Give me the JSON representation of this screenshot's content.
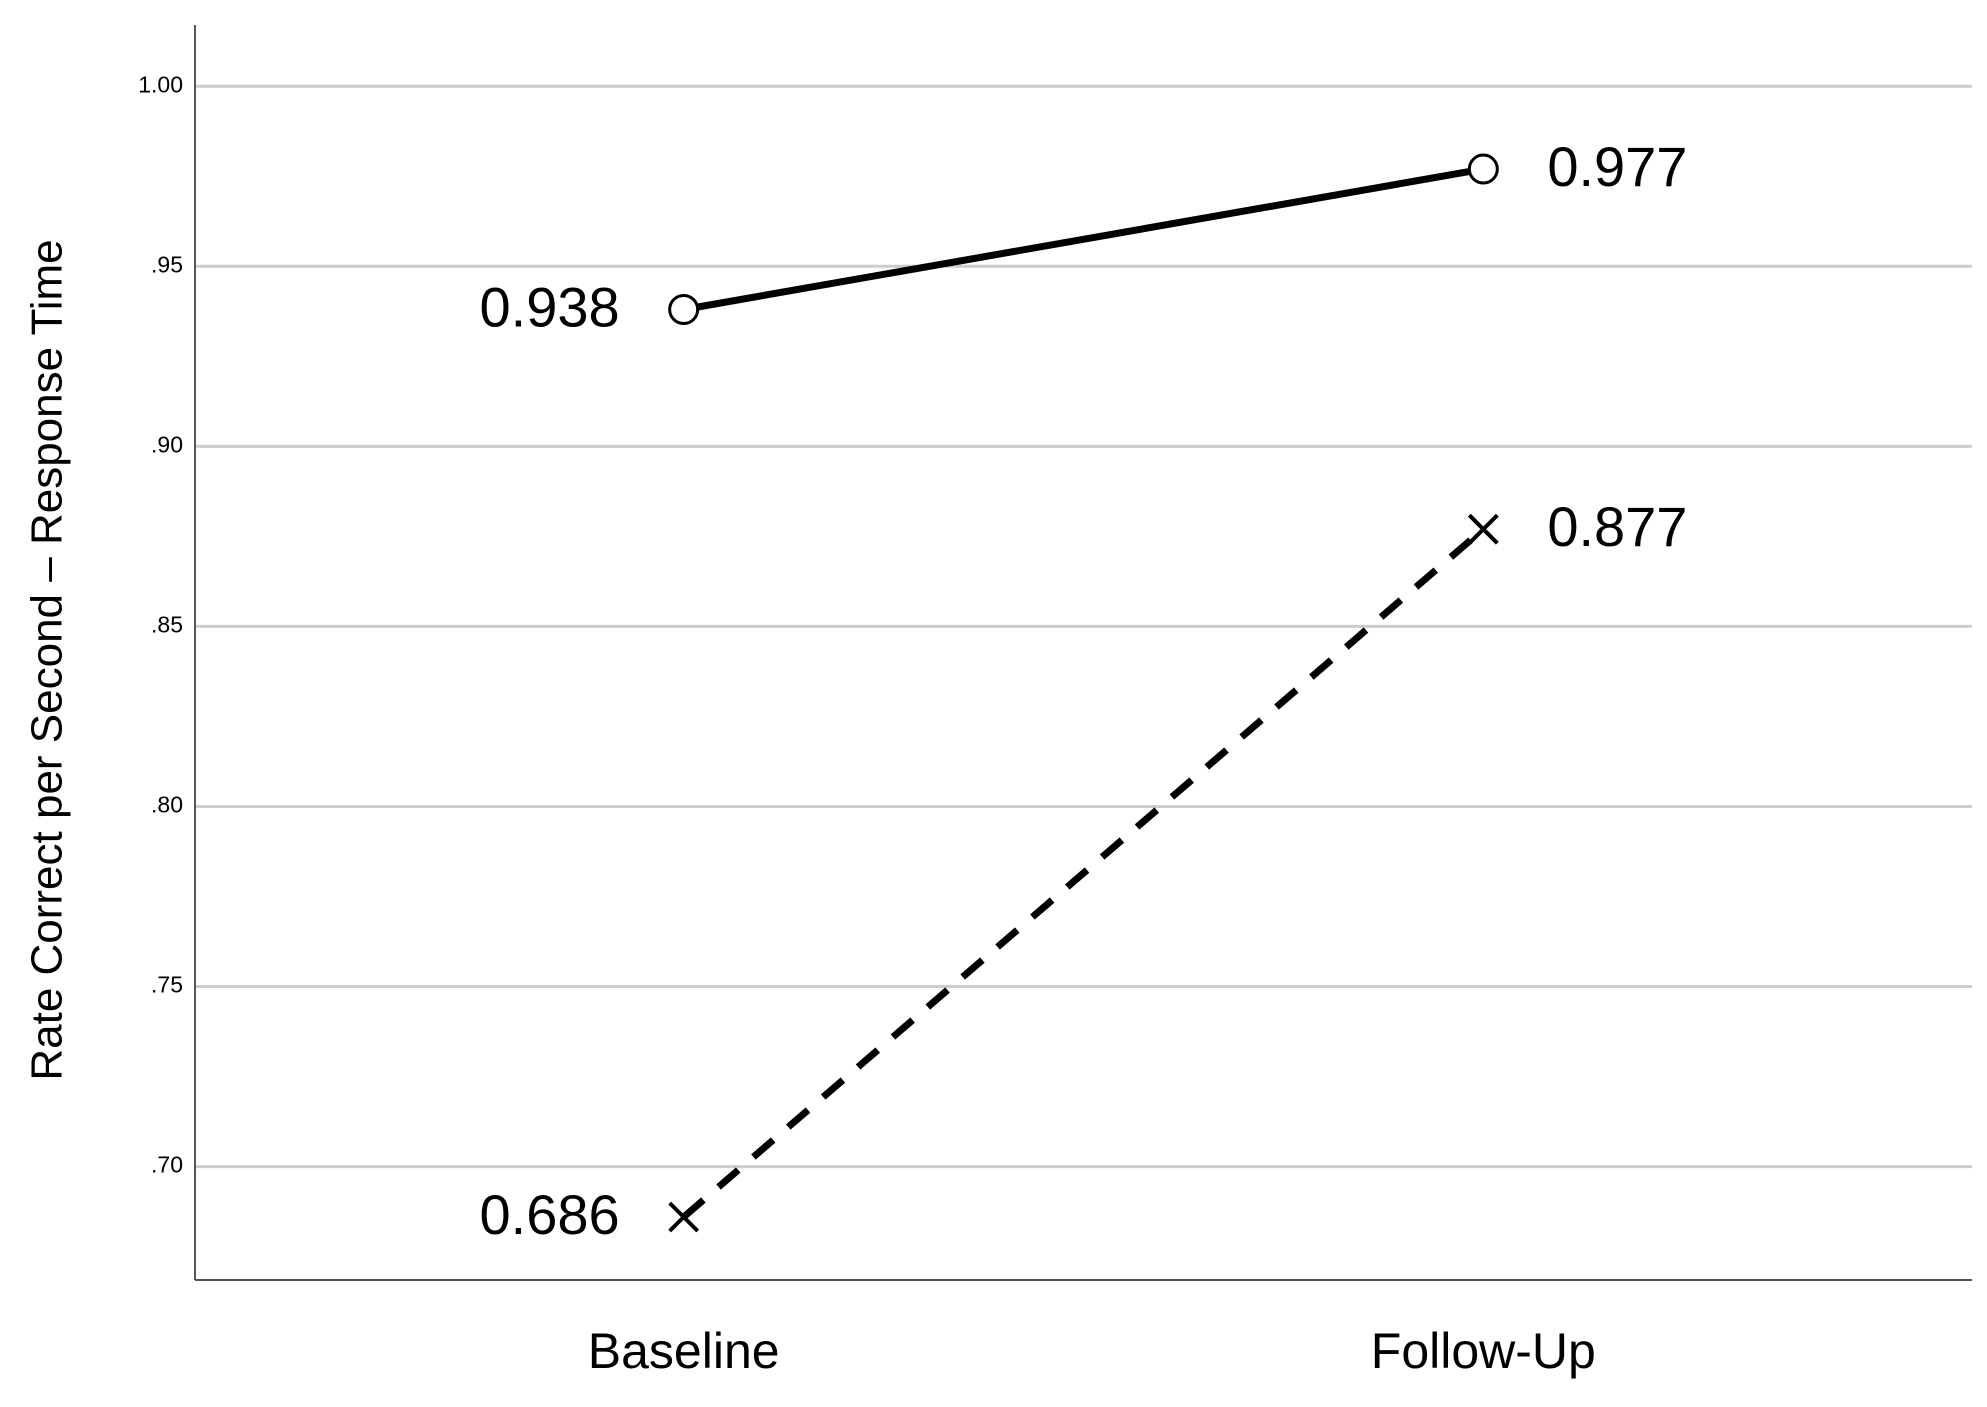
{
  "chart_data": {
    "type": "line",
    "y_label": "Rate Correct per Second – Response Time",
    "categories": [
      "Baseline",
      "Follow-Up"
    ],
    "series": [
      {
        "color": "#000000",
        "marker": "circle",
        "line_style": "solid",
        "values": [
          0.938,
          0.977
        ]
      },
      {
        "color": "#000000",
        "marker": "x",
        "line_style": "dashed",
        "values": [
          0.686,
          0.877
        ]
      }
    ],
    "ylim": [
      0.6685,
      1.017
    ],
    "yticks": [
      {
        "value": 0.7,
        "label": ".70"
      },
      {
        "value": 0.75,
        "label": ".75"
      },
      {
        "value": 0.8,
        "label": ".80"
      },
      {
        "value": 0.85,
        "label": ".85"
      },
      {
        "value": 0.9,
        "label": ".90"
      },
      {
        "value": 0.95,
        "label": ".95"
      },
      {
        "value": 1.0,
        "label": "1.00"
      }
    ],
    "grid": true
  }
}
